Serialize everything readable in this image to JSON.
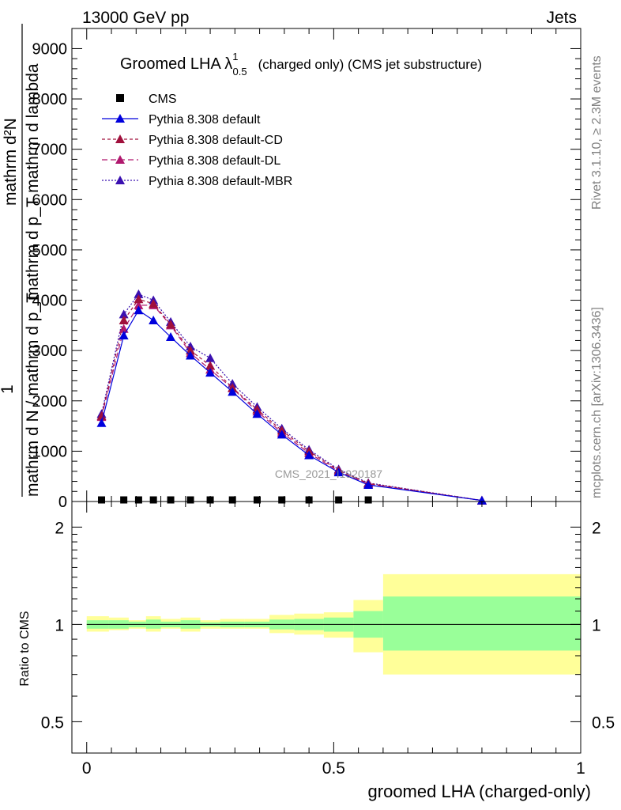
{
  "header": {
    "left": "13000 GeV pp",
    "right": "Jets"
  },
  "side_text": {
    "rivet": "Rivet 3.1.10, ≥ 2.3M events",
    "mcplots": "mcplots.cern.ch [arXiv:1306.3436]"
  },
  "watermark": "CMS_2021_I1920187",
  "colors": {
    "cms": "#000000",
    "default": "#0000dd",
    "default_cd": "#a0103c",
    "default_dl": "#b0186e",
    "default_mbr": "#3a10b0",
    "band_outer": "#ffff99",
    "band_inner": "#99ff99"
  },
  "chart_data": [
    {
      "type": "line",
      "title": "Groomed LHA λ",
      "title_sup": "1",
      "title_sub": "0.5",
      "title_rest": "(charged only) (CMS jet substructure)",
      "ylabel_lines": [
        "mathrm d²N",
        "mathrm d p_T mathrm d lambda",
        "1",
        "mathrm d N / mathrm d p_T"
      ],
      "ylim": [
        0,
        9400
      ],
      "yticks": [
        0,
        1000,
        2000,
        3000,
        4000,
        5000,
        6000,
        7000,
        8000,
        9000
      ],
      "yticklabels": [
        "0",
        "1000",
        "2000",
        "3000",
        "4000",
        "5000",
        "6000",
        "7000",
        "8000",
        "9000"
      ],
      "xlim": [
        -0.03,
        1.0
      ],
      "legend_position": "top-left",
      "series": [
        {
          "name": "CMS",
          "x": [
            0.03,
            0.075,
            0.105,
            0.135,
            0.17,
            0.21,
            0.25,
            0.295,
            0.345,
            0.395,
            0.45,
            0.51,
            0.57
          ],
          "values": [
            0,
            0,
            0,
            0,
            0,
            0,
            0,
            0,
            0,
            0,
            0,
            0,
            0
          ]
        },
        {
          "name": "Pythia 8.308 default",
          "x": [
            0.03,
            0.075,
            0.105,
            0.135,
            0.17,
            0.21,
            0.25,
            0.295,
            0.345,
            0.395,
            0.45,
            0.51,
            0.57,
            0.8
          ],
          "values": [
            1560,
            3300,
            3800,
            3600,
            3270,
            2900,
            2560,
            2180,
            1740,
            1330,
            920,
            580,
            330,
            20
          ]
        },
        {
          "name": "Pythia 8.308 default-CD",
          "x": [
            0.03,
            0.075,
            0.105,
            0.135,
            0.17,
            0.21,
            0.25,
            0.295,
            0.345,
            0.395,
            0.45,
            0.51,
            0.57,
            0.8
          ],
          "values": [
            1700,
            3600,
            4020,
            3930,
            3520,
            3000,
            2700,
            2260,
            1830,
            1410,
            1000,
            620,
            360,
            20
          ]
        },
        {
          "name": "Pythia 8.308 default-DL",
          "x": [
            0.03,
            0.075,
            0.105,
            0.135,
            0.17,
            0.21,
            0.25,
            0.295,
            0.345,
            0.395,
            0.45,
            0.51,
            0.57,
            0.8
          ],
          "values": [
            1680,
            3430,
            3900,
            3900,
            3500,
            2950,
            2620,
            2250,
            1790,
            1370,
            960,
            600,
            350,
            20
          ]
        },
        {
          "name": "Pythia 8.308 default-MBR",
          "x": [
            0.03,
            0.075,
            0.105,
            0.135,
            0.17,
            0.21,
            0.25,
            0.295,
            0.345,
            0.395,
            0.45,
            0.51,
            0.57,
            0.8
          ],
          "values": [
            1740,
            3720,
            4120,
            4000,
            3570,
            3080,
            2850,
            2340,
            1880,
            1450,
            1030,
            640,
            370,
            20
          ]
        }
      ]
    },
    {
      "type": "area",
      "ylabel": "Ratio to CMS",
      "xlabel": "groomed LHA (charged-only)",
      "xlim": [
        -0.03,
        1.0
      ],
      "xticks": [
        0,
        0.5,
        1
      ],
      "xticklabels": [
        "0",
        "0.5",
        "1"
      ],
      "ylim_log": [
        0.4,
        2.4
      ],
      "yticks": [
        0.5,
        1,
        2
      ],
      "yticklabels": [
        "0.5",
        "1",
        "2"
      ],
      "reference_line": 1,
      "bands": {
        "edges": [
          0,
          0.045,
          0.085,
          0.12,
          0.15,
          0.19,
          0.23,
          0.27,
          0.32,
          0.37,
          0.42,
          0.48,
          0.54,
          0.6,
          1.0
        ],
        "outer_low": [
          0.95,
          0.96,
          0.97,
          0.95,
          0.97,
          0.95,
          0.97,
          0.97,
          0.97,
          0.94,
          0.93,
          0.91,
          0.82,
          0.7
        ],
        "outer_high": [
          1.06,
          1.05,
          1.03,
          1.06,
          1.04,
          1.05,
          1.03,
          1.04,
          1.04,
          1.07,
          1.08,
          1.09,
          1.19,
          1.43
        ],
        "inner_low": [
          0.97,
          0.97,
          0.98,
          0.97,
          0.98,
          0.97,
          0.985,
          0.98,
          0.98,
          0.965,
          0.96,
          0.95,
          0.91,
          0.83
        ],
        "inner_high": [
          1.03,
          1.03,
          1.02,
          1.035,
          1.02,
          1.03,
          1.015,
          1.02,
          1.02,
          1.035,
          1.04,
          1.05,
          1.1,
          1.22
        ]
      }
    }
  ]
}
